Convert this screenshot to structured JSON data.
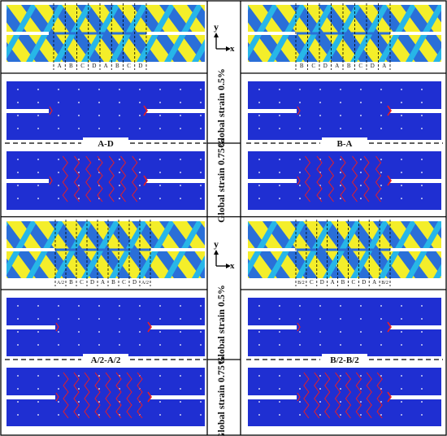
{
  "colors": {
    "blue": "#1f2fd2",
    "fiber_yellow": "#f4ee2a",
    "fiber_cyan": "#27b6e8",
    "fiber_blue": "#2a6fd8",
    "crack_red": "#e81e25",
    "grid_line": "#000000",
    "white": "#ffffff"
  },
  "axis_glyph": {
    "y_label": "y",
    "x_label": "x"
  },
  "strain_labels": {
    "low": "Global strain 0.5%",
    "high": "Global strain 0.75%"
  },
  "panels": [
    {
      "id": "A-D",
      "title": "A-D",
      "zone_labels": [
        "A",
        "B",
        "C",
        "D",
        "A",
        "B",
        "C",
        "D"
      ]
    },
    {
      "id": "B-A",
      "title": "B-A",
      "zone_labels": [
        "B",
        "C",
        "D",
        "A",
        "B",
        "C",
        "D",
        "A"
      ]
    },
    {
      "id": "A/2-A/2",
      "title": "A/2-A/2",
      "zone_labels": [
        "A/2",
        "B",
        "C",
        "D",
        "A",
        "B",
        "C",
        "D",
        "A/2"
      ]
    },
    {
      "id": "B/2-B/2",
      "title": "B/2-B/2",
      "zone_labels": [
        "B/2",
        "C",
        "D",
        "A",
        "B",
        "C",
        "D",
        "A",
        "B/2"
      ]
    }
  ]
}
